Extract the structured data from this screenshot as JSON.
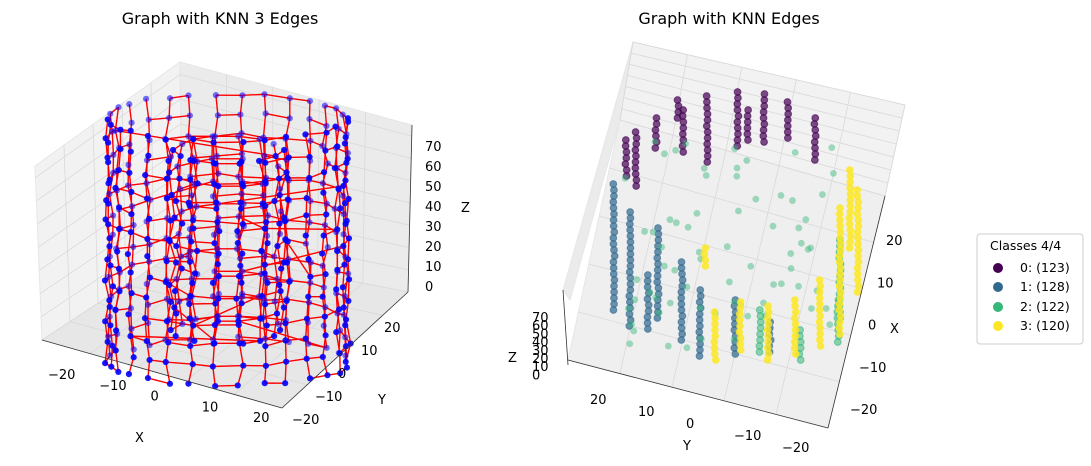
{
  "colors": {
    "edge": "#ff0000",
    "node": "#0000ff",
    "class0": "#440154",
    "class1": "#31688e",
    "class2": "#35b779",
    "class3": "#fde725"
  },
  "chart_data": [
    {
      "type": "scatter",
      "subtype": "3d-knn-graph",
      "title": "Graph with KNN 3 Edges",
      "xlabel": "X",
      "ylabel": "Y",
      "zlabel": "Z",
      "xticks": [
        "−20",
        "−10",
        "0",
        "10",
        "20"
      ],
      "yticks": [
        "20",
        "10",
        "0",
        "−10",
        "−20"
      ],
      "zticks": [
        "70",
        "60",
        "50",
        "40",
        "30",
        "20",
        "10",
        "0"
      ],
      "xlim": [
        -25,
        25
      ],
      "ylim": [
        -25,
        25
      ],
      "zlim": [
        0,
        75
      ]
    },
    {
      "type": "scatter",
      "subtype": "3d-knn-classes",
      "title": "Graph with KNN Edges",
      "xlabel": "X",
      "ylabel": "Y",
      "zlabel": "Z",
      "xticks": [
        "20",
        "10",
        "0",
        "−10",
        "−20"
      ],
      "yticks": [
        "20",
        "10",
        "0",
        "−10",
        "−20"
      ],
      "zticks": [
        "70",
        "60",
        "50",
        "40",
        "30",
        "20",
        "10",
        "0"
      ],
      "legend": {
        "title": "Classes 4/4",
        "placement": "right",
        "entries": [
          "0: (123)",
          "1: (128)",
          "2: (122)",
          "3: (120)"
        ]
      },
      "classes": [
        {
          "id": 0,
          "count": 123
        },
        {
          "id": 1,
          "count": 128
        },
        {
          "id": 2,
          "count": 122
        },
        {
          "id": 3,
          "count": 120
        }
      ]
    }
  ]
}
